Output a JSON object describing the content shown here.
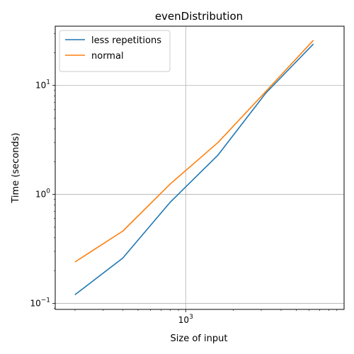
{
  "chart_data": {
    "type": "line",
    "title": "evenDistribution",
    "xlabel": "Size of input",
    "ylabel": "Time (seconds)",
    "xscale": "log",
    "yscale": "log",
    "xlim": [
      150,
      10000
    ],
    "ylim": [
      0.088,
      35
    ],
    "x": [
      200,
      400,
      800,
      1600,
      3200,
      6400
    ],
    "series": [
      {
        "name": "less repetitions",
        "color": "#1f77b4",
        "values": [
          0.12,
          0.26,
          0.85,
          2.3,
          8.5,
          24.0
        ]
      },
      {
        "name": "normal",
        "color": "#ff7f0e",
        "values": [
          0.24,
          0.46,
          1.25,
          3.0,
          8.8,
          26.0
        ]
      }
    ],
    "xticks": [
      {
        "value": 1000,
        "base": "10",
        "exp": "3"
      }
    ],
    "yticks": [
      {
        "value": 0.1,
        "base": "10",
        "exp": "−1"
      },
      {
        "value": 1,
        "base": "10",
        "exp": "0"
      },
      {
        "value": 10,
        "base": "10",
        "exp": "1"
      }
    ],
    "grid": true,
    "legend_position": "top-left"
  }
}
